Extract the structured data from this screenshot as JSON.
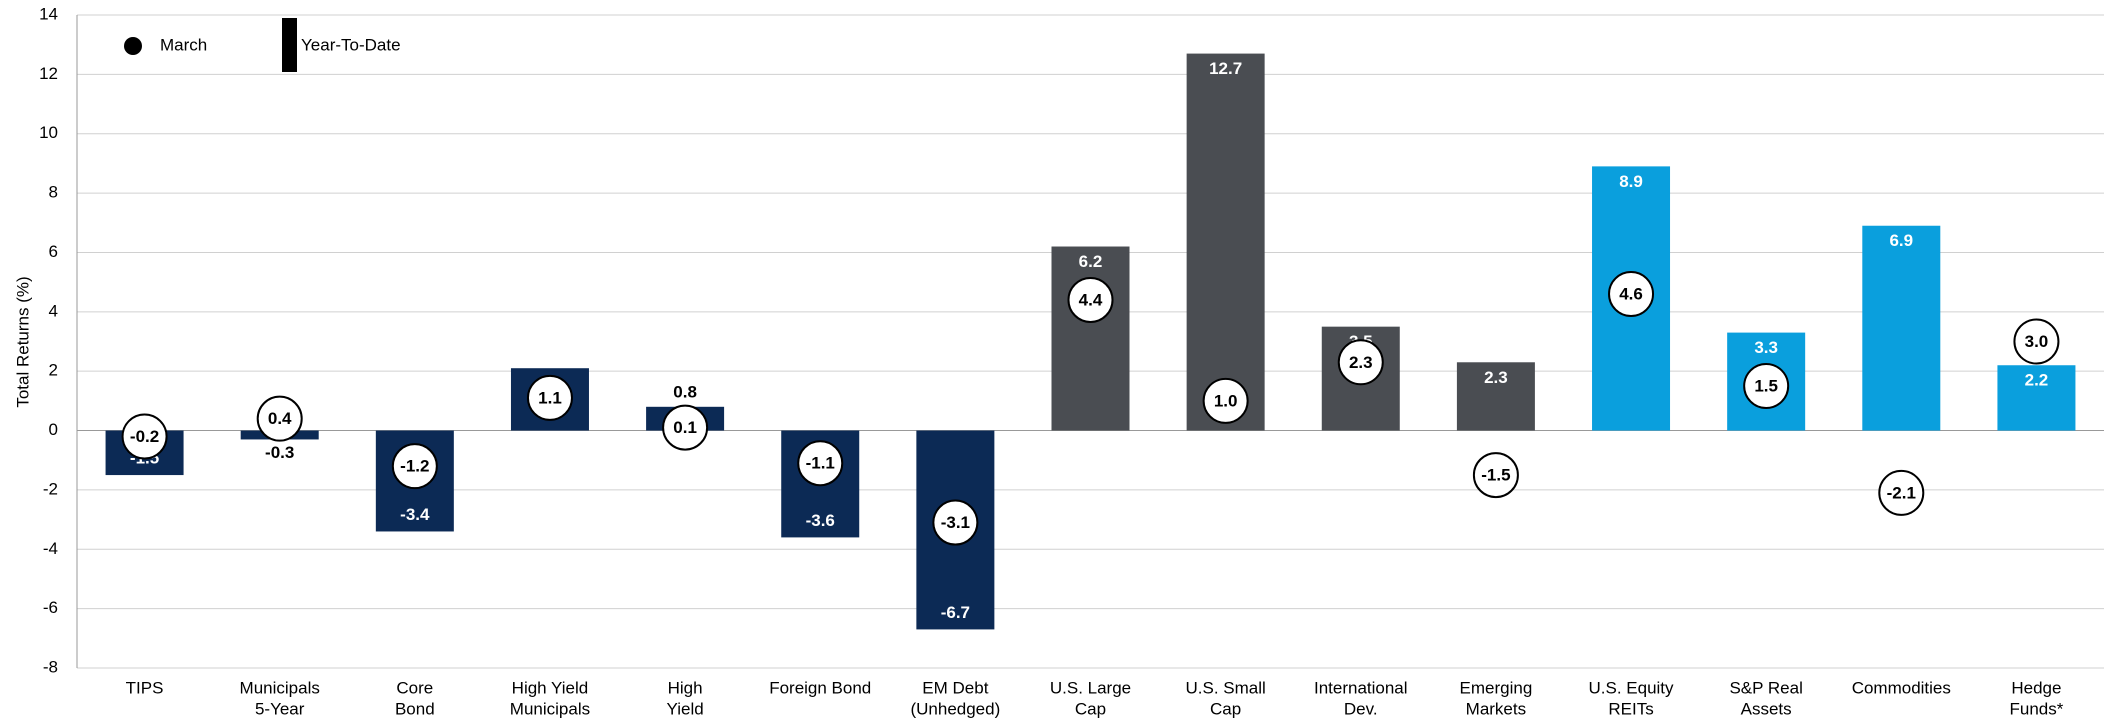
{
  "chart_data": {
    "type": "bar",
    "y_label": "Total Returns (%)",
    "categories": [
      [
        "TIPS"
      ],
      [
        "Municipals",
        "5-Year"
      ],
      [
        "Core",
        "Bond"
      ],
      [
        "High Yield",
        "Municipals"
      ],
      [
        "High",
        "Yield"
      ],
      [
        "Foreign Bond"
      ],
      [
        "EM Debt",
        "(Unhedged)"
      ],
      [
        "U.S. Large",
        "Cap"
      ],
      [
        "U.S. Small",
        "Cap"
      ],
      [
        "International",
        "Dev."
      ],
      [
        "Emerging",
        "Markets"
      ],
      [
        "U.S. Equity",
        "REITs"
      ],
      [
        "S&P Real",
        "Assets"
      ],
      [
        "Commodities"
      ],
      [
        "Hedge",
        "Funds*"
      ]
    ],
    "series": [
      {
        "name": "Year-To-Date",
        "kind": "bar",
        "colors": [
          "#0c2a55",
          "#0c2a55",
          "#0c2a55",
          "#0c2a55",
          "#0c2a55",
          "#0c2a55",
          "#0c2a55",
          "#4a4d52",
          "#4a4d52",
          "#4a4d52",
          "#4a4d52",
          "#0a9fdd",
          "#0a9fdd",
          "#0a9fdd",
          "#0a9fdd"
        ],
        "values": [
          -1.5,
          -0.3,
          -3.4,
          2.1,
          0.8,
          -3.6,
          -6.7,
          6.2,
          12.7,
          3.5,
          2.3,
          8.9,
          3.3,
          6.9,
          2.2
        ],
        "value_labels": [
          "-1.5",
          "-0.3",
          "-3.4",
          "2.1",
          "0.8",
          "-3.6",
          "-6.7",
          "6.2",
          "12.7",
          "3.5",
          "2.3",
          "8.9",
          "3.3",
          "6.9",
          "2.2"
        ]
      },
      {
        "name": "March",
        "kind": "circle",
        "color": "#ffffff",
        "values": [
          -0.2,
          0.4,
          -1.2,
          1.1,
          0.1,
          -1.1,
          -3.1,
          4.4,
          1.0,
          2.3,
          -1.5,
          4.6,
          1.5,
          -2.1,
          3.0
        ],
        "value_labels": [
          "-0.2",
          "0.4",
          "-1.2",
          "1.1",
          "0.1",
          "-1.1",
          "-3.1",
          "4.4",
          "1.0",
          "2.3",
          "-1.5",
          "4.6",
          "1.5",
          "-2.1",
          "3.0"
        ]
      }
    ],
    "ylim": [
      -8,
      14
    ],
    "yticks": [
      -8,
      -6,
      -4,
      -2,
      0,
      2,
      4,
      6,
      8,
      10,
      12,
      14
    ],
    "grid": true
  }
}
